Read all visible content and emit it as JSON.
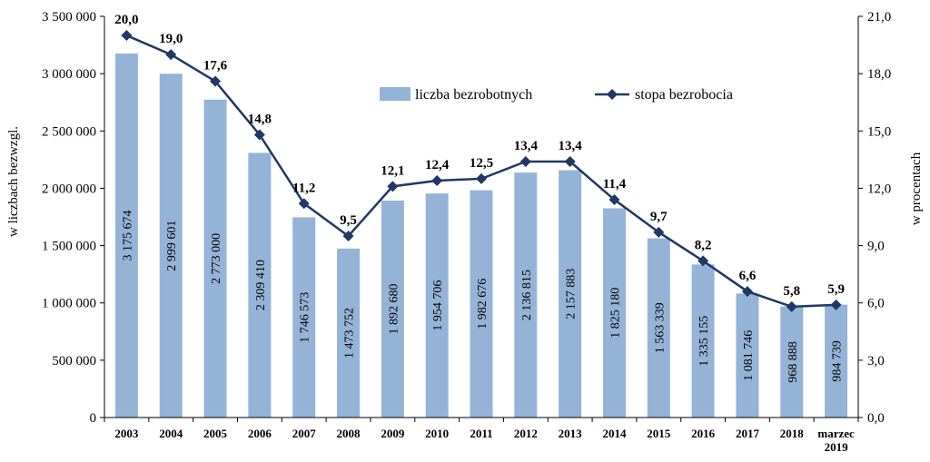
{
  "chart_data": {
    "type": "bar+line",
    "categories": [
      "2003",
      "2004",
      "2005",
      "2006",
      "2007",
      "2008",
      "2009",
      "2010",
      "2011",
      "2012",
      "2013",
      "2014",
      "2015",
      "2016",
      "2017",
      "2018",
      "marzec 2019"
    ],
    "series": [
      {
        "name": "liczba bezrobotnych",
        "type": "bar",
        "axis": "left",
        "color": "#95b3d7",
        "values": [
          3175674,
          2999601,
          2773000,
          2309410,
          1746573,
          1473752,
          1892680,
          1954706,
          1982676,
          2136815,
          2157883,
          1825180,
          1563339,
          1335155,
          1081746,
          968888,
          984739
        ],
        "labels": [
          "3 175 674",
          "2 999 601",
          "2 773 000",
          "2 309 410",
          "1 746 573",
          "1 473 752",
          "1 892 680",
          "1 954 706",
          "1 982 676",
          "2 136 815",
          "2 157 883",
          "1 825 180",
          "1 563 339",
          "1 335 155",
          "1 081 746",
          "968 888",
          "984 739"
        ]
      },
      {
        "name": "stopa bezrobocia",
        "type": "line",
        "axis": "right",
        "color": "#1f3864",
        "values": [
          20.0,
          19.0,
          17.6,
          14.8,
          11.2,
          9.5,
          12.1,
          12.4,
          12.5,
          13.4,
          13.4,
          11.4,
          9.7,
          8.2,
          6.6,
          5.8,
          5.9
        ],
        "labels": [
          "20,0",
          "19,0",
          "17,6",
          "14,8",
          "11,2",
          "9,5",
          "12,1",
          "12,4",
          "12,5",
          "13,4",
          "13,4",
          "11,4",
          "9,7",
          "8,2",
          "6,6",
          "5,8",
          "5,9"
        ]
      }
    ],
    "y_left": {
      "label": "w liczbach bezwzgl.",
      "ylim": [
        0,
        3500000
      ],
      "ticks": [
        0,
        500000,
        1000000,
        1500000,
        2000000,
        2500000,
        3000000,
        3500000
      ],
      "tick_labels": [
        "0",
        "500 000",
        "1 000 000",
        "1 500 000",
        "2 000 000",
        "2 500 000",
        "3 000 000",
        "3 500 000"
      ]
    },
    "y_right": {
      "label": "w procentach",
      "ylim": [
        0,
        21
      ],
      "ticks": [
        0,
        3,
        6,
        9,
        12,
        15,
        18,
        21
      ],
      "tick_labels": [
        "0,0",
        "3,0",
        "6,0",
        "9,0",
        "12,0",
        "15,0",
        "18,0",
        "21,0"
      ]
    },
    "legend": {
      "placement": "top-center"
    },
    "grid": false
  }
}
